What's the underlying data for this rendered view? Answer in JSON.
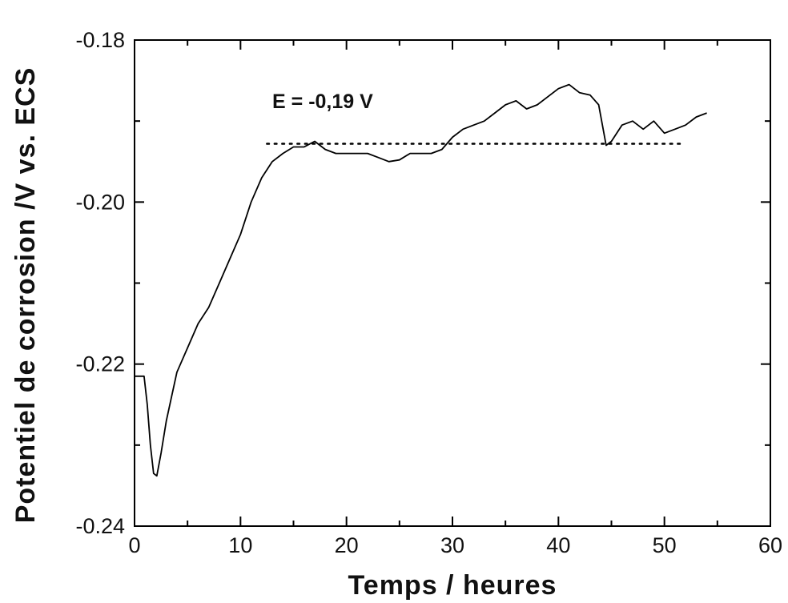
{
  "chart_data": {
    "type": "line",
    "title": "",
    "xlabel": "Temps / heures",
    "ylabel": "Potentiel de corrosion /V vs. ECS",
    "xlim": [
      0,
      60
    ],
    "ylim": [
      -0.24,
      -0.18
    ],
    "xticks": [
      "0",
      "10",
      "20",
      "30",
      "40",
      "50",
      "60"
    ],
    "yticks": [
      "-0.18",
      "-0.20",
      "-0.22",
      "-0.24"
    ],
    "grid": false,
    "legend": "none",
    "series": [
      {
        "color": "#000000",
        "style": "solid",
        "x": [
          0,
          0.5,
          0.9,
          1.2,
          1.5,
          1.8,
          2.1,
          2.5,
          3.0,
          3.5,
          4.0,
          5.0,
          6.0,
          7.0,
          8.0,
          9.0,
          10.0,
          11.0,
          12.0,
          13.0,
          14.0,
          15.0,
          16.0,
          17.0,
          18.0,
          19.0,
          20.0,
          21.0,
          22.0,
          23.0,
          24.0,
          25.0,
          26.0,
          27.0,
          28.0,
          29.0,
          30.0,
          31.0,
          32.0,
          33.0,
          34.0,
          35.0,
          36.0,
          37.0,
          38.0,
          39.0,
          40.0,
          41.0,
          42.0,
          43.0,
          43.8,
          44.5,
          45.0,
          46.0,
          47.0,
          48.0,
          49.0,
          50.0,
          51.0,
          52.0,
          53.0,
          54.0
        ],
        "y": [
          -0.2215,
          -0.2215,
          -0.2215,
          -0.225,
          -0.23,
          -0.2335,
          -0.2338,
          -0.231,
          -0.227,
          -0.224,
          -0.221,
          -0.218,
          -0.215,
          -0.213,
          -0.21,
          -0.207,
          -0.204,
          -0.2,
          -0.197,
          -0.195,
          -0.194,
          -0.1932,
          -0.1932,
          -0.1925,
          -0.1935,
          -0.194,
          -0.194,
          -0.194,
          -0.194,
          -0.1945,
          -0.195,
          -0.1948,
          -0.194,
          -0.194,
          -0.194,
          -0.1935,
          -0.192,
          -0.191,
          -0.1905,
          -0.19,
          -0.189,
          -0.188,
          -0.1875,
          -0.1885,
          -0.188,
          -0.187,
          -0.186,
          -0.1855,
          -0.1865,
          -0.1868,
          -0.188,
          -0.193,
          -0.1925,
          -0.1905,
          -0.19,
          -0.191,
          -0.19,
          -0.1915,
          -0.191,
          -0.1905,
          -0.1895,
          -0.189
        ]
      },
      {
        "color": "#000000",
        "style": "dotted",
        "x": [
          12.5,
          51.5
        ],
        "y": [
          -0.1928,
          -0.1928
        ]
      }
    ],
    "annotations": [
      {
        "text": "E = -0,19 V",
        "x": 13,
        "y": -0.1875
      }
    ]
  }
}
